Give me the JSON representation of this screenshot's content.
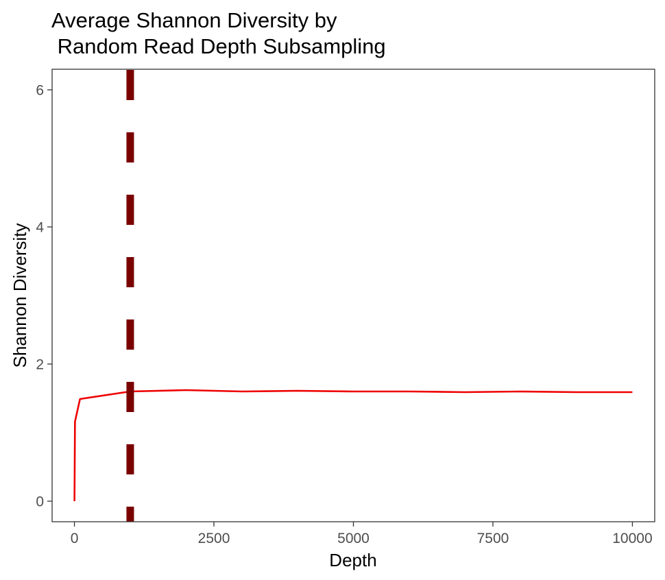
{
  "chart_data": {
    "type": "line",
    "title_lines": [
      "Average Shannon Diversity by",
      " Random Read Depth Subsampling"
    ],
    "xlabel": "Depth",
    "ylabel": "Shannon Diversity",
    "xlim": [
      -400,
      10400
    ],
    "ylim": [
      -0.3,
      6.3
    ],
    "x_ticks": [
      0,
      2500,
      5000,
      7500,
      10000
    ],
    "x_tick_labels": [
      "0",
      "2500",
      "5000",
      "7500",
      "10000"
    ],
    "y_ticks": [
      0,
      2,
      4,
      6
    ],
    "y_tick_labels": [
      "0",
      "2",
      "4",
      "6"
    ],
    "grid": false,
    "legend": "none",
    "series": [
      {
        "color": "#ee0000",
        "x": [
          1,
          10,
          100,
          1000,
          2000,
          3000,
          4000,
          5000,
          6000,
          7000,
          8000,
          9000,
          10000
        ],
        "y": [
          0.0,
          1.16,
          1.49,
          1.6,
          1.62,
          1.6,
          1.61,
          1.6,
          1.6,
          1.59,
          1.6,
          1.59,
          1.59
        ]
      }
    ],
    "reference_line": {
      "orientation": "vertical",
      "x": 1000,
      "style": "dashed",
      "color": "#7a0000"
    }
  }
}
